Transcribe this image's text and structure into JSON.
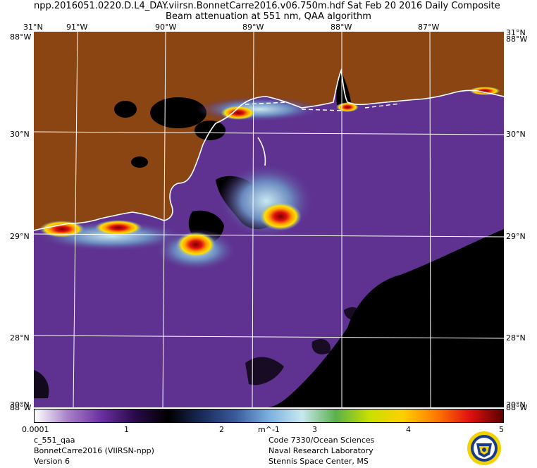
{
  "header": {
    "title_line1": "npp.2016051.0220.D.L4_DAY.viirsn.BonnetCarre2016.v06.750m.hdf    Sat Feb 20 2016 Daily Composite",
    "title_line2": "Beam attenuation at 551 nm, QAA algorithm"
  },
  "axes": {
    "top_longitudes": [
      "91°W",
      "90°W",
      "89°W",
      "88°W",
      "87°W"
    ],
    "latitudes": [
      "30°N",
      "29°N",
      "28°N"
    ],
    "corner_top_left": "31°N",
    "corner_top_right": "31°N",
    "corner_left_lon_top": "88°W",
    "corner_right_lon_top": "88°W",
    "corner_left_lon_bottom": "88°W",
    "corner_right_lon_bottom": "88°W",
    "corner_left_lat_bottom": "30°N",
    "corner_right_lat_bottom": "30°N"
  },
  "colorbar": {
    "labels": [
      "0.0001",
      "1",
      "2",
      "m^-1",
      "3",
      "4",
      "5"
    ],
    "stops": [
      "#ffffff",
      "#a880c8",
      "#6a2fa0",
      "#2a0a4a",
      "#000000",
      "#1a2a5a",
      "#3a5a9a",
      "#7ab0e0",
      "#c8e8f0",
      "#5ab04a",
      "#c8e000",
      "#ffd000",
      "#ff7a00",
      "#e01010",
      "#5a0000"
    ]
  },
  "footer": {
    "left": [
      "c_551_qaa",
      "BonnetCarre2016 (VIIRSN-npp)",
      "Version 6"
    ],
    "right": [
      "Code 7330/Ocean Sciences",
      "Naval Research Laboratory",
      "Stennis Space Center, MS"
    ]
  },
  "colors": {
    "land": "#8b4513",
    "ocean": "#5a2d8a",
    "no_data": "#000000",
    "grid": "#ffffff"
  }
}
